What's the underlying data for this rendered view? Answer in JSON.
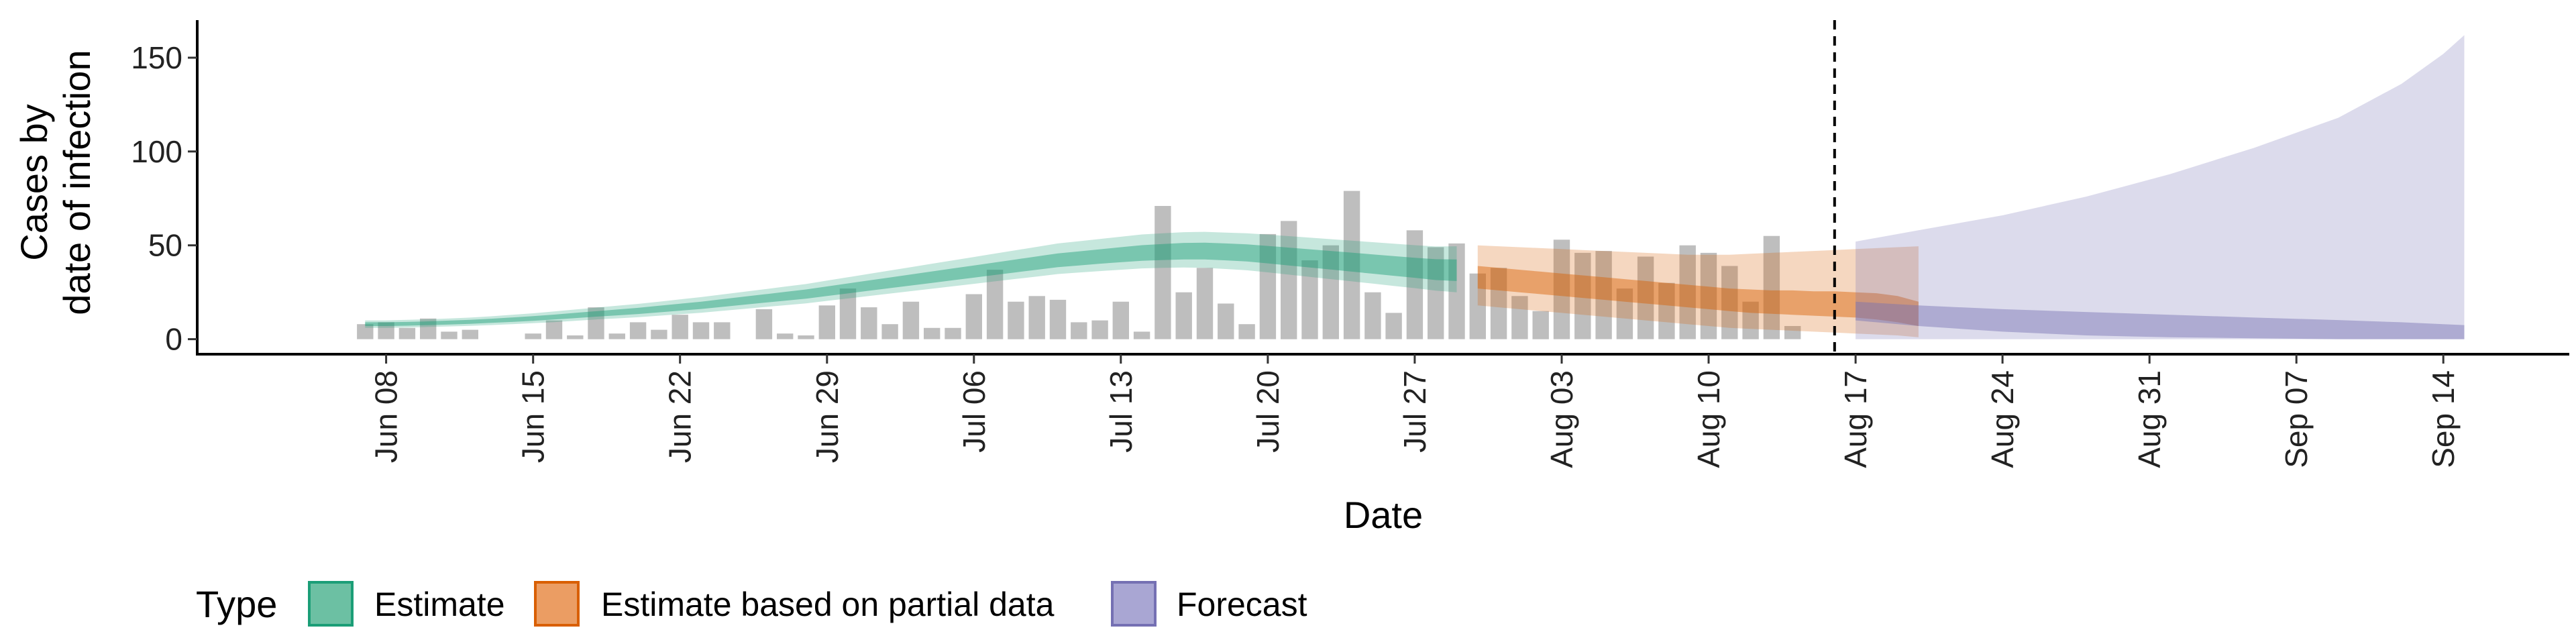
{
  "chart_data": {
    "type": "area",
    "xlabel": "Date",
    "ylabel_lines": [
      "Cases by",
      "date of infection"
    ],
    "x_ticks": [
      "Jun 08",
      "Jun 15",
      "Jun 22",
      "Jun 29",
      "Jul 06",
      "Jul 13",
      "Jul 20",
      "Jul 27",
      "Aug 03",
      "Aug 10",
      "Aug 17",
      "Aug 24",
      "Aug 31",
      "Sep 07",
      "Sep 14"
    ],
    "y_ticks": [
      0,
      50,
      100,
      150
    ],
    "ylim": [
      -8,
      170
    ],
    "xlim": [
      "2020-05-30",
      "2020-09-20"
    ],
    "forecast_start_line": "2020-08-16",
    "grid": false,
    "legend": {
      "title": "Type",
      "position": "bottom",
      "items": [
        {
          "label": "Estimate",
          "fill": "#6cc0a3",
          "stroke": "#1b9e77"
        },
        {
          "label": "Estimate based on partial data",
          "fill": "#eb9d63",
          "stroke": "#d95f02"
        },
        {
          "label": "Forecast",
          "fill": "#a9a6d3",
          "stroke": "#7570b3"
        }
      ]
    },
    "colors": {
      "bars": "#a8a8a8",
      "estimate": "#1b9e77",
      "partial": "#d95f02",
      "forecast": "#7570b3"
    },
    "reported_cases": {
      "start_date": "2020-06-07",
      "values": [
        8,
        9,
        6,
        11,
        4,
        5,
        0,
        0,
        3,
        10,
        2,
        17,
        3,
        9,
        5,
        13,
        9,
        9,
        0,
        16,
        3,
        2,
        18,
        27,
        17,
        8,
        20,
        6,
        6,
        24,
        37,
        20,
        23,
        21,
        9,
        10,
        20,
        4,
        71,
        25,
        38,
        19,
        8,
        56,
        63,
        42,
        50,
        79,
        25,
        14,
        58,
        49,
        51,
        35,
        38,
        23,
        15,
        53,
        46,
        47,
        27,
        44,
        30,
        50,
        46,
        39,
        20,
        55,
        7
      ]
    },
    "estimate": {
      "start_date": "2020-06-07",
      "median": [
        8,
        8,
        8.2,
        8.5,
        8.8,
        9.2,
        9.8,
        10.4,
        11,
        11.8,
        12.6,
        13.4,
        14.2,
        15,
        16,
        17,
        18,
        19.2,
        20.4,
        21.6,
        22.8,
        24,
        25.5,
        27,
        28.5,
        30,
        31.5,
        33,
        34.5,
        36,
        37.5,
        39,
        40.5,
        42,
        43,
        44,
        45,
        46,
        46.5,
        47,
        47,
        46.5,
        46,
        45,
        44,
        43,
        42,
        41,
        40,
        39,
        38,
        37,
        37
      ],
      "lower50": [
        7,
        7,
        7.2,
        7.5,
        7.8,
        8.2,
        8.7,
        9.2,
        9.8,
        10.5,
        11.2,
        12,
        12.7,
        13.4,
        14.3,
        15.2,
        16.1,
        17.2,
        18.3,
        19.4,
        20.5,
        21.6,
        23,
        24.4,
        25.8,
        27.2,
        28.6,
        30,
        31.4,
        32.8,
        34.2,
        35.6,
        37,
        38.4,
        39.3,
        40.2,
        41,
        41.8,
        42.2,
        42.5,
        42.5,
        42,
        41.4,
        40.4,
        39.3,
        38.2,
        37.1,
        36,
        34.9,
        33.8,
        32.7,
        31.5,
        31
      ],
      "upper50": [
        9,
        9,
        9.2,
        9.5,
        9.9,
        10.3,
        10.9,
        11.6,
        12.3,
        13.1,
        14,
        14.9,
        15.8,
        16.7,
        17.8,
        18.9,
        20,
        21.3,
        22.6,
        23.9,
        25.2,
        26.5,
        28.1,
        29.7,
        31.3,
        32.9,
        34.5,
        36.1,
        37.7,
        39.3,
        40.9,
        42.5,
        44.1,
        45.7,
        46.8,
        47.9,
        49,
        50.1,
        50.7,
        51.3,
        51.4,
        51,
        50.5,
        49.7,
        48.8,
        47.9,
        47,
        46.1,
        45.2,
        44.3,
        43.4,
        42.6,
        42.5
      ],
      "lower90": [
        6,
        6,
        6.2,
        6.5,
        6.8,
        7.1,
        7.5,
        8,
        8.5,
        9.1,
        9.8,
        10.5,
        11.1,
        11.7,
        12.5,
        13.3,
        14.1,
        15.1,
        16.1,
        17.1,
        18.1,
        19.1,
        20.4,
        21.7,
        23,
        24.3,
        25.6,
        26.9,
        28.2,
        29.5,
        30.8,
        32.1,
        33.4,
        34.7,
        35.5,
        36.3,
        37,
        37.7,
        38,
        38.2,
        38,
        37.4,
        36.7,
        35.6,
        34.4,
        33.2,
        32,
        30.8,
        29.6,
        28.4,
        27.2,
        25.9,
        25
      ],
      "upper90": [
        10,
        10,
        10.3,
        10.6,
        11,
        11.5,
        12.2,
        13,
        13.8,
        14.8,
        15.8,
        16.8,
        17.8,
        18.8,
        20,
        21.2,
        22.4,
        23.8,
        25.2,
        26.6,
        28,
        29.4,
        31.2,
        33,
        34.8,
        36.6,
        38.4,
        40.2,
        42,
        43.8,
        45.6,
        47.4,
        49.2,
        51,
        52.2,
        53.4,
        54.6,
        55.8,
        56.4,
        57,
        57.2,
        56.8,
        56.4,
        55.7,
        54.9,
        54.1,
        53.3,
        52.5,
        51.7,
        50.9,
        50.1,
        49.4,
        49.5
      ]
    },
    "partial": {
      "start_date": "2020-07-30",
      "median": [
        33,
        32,
        31,
        30,
        29,
        28,
        27,
        26,
        25,
        24,
        23,
        22,
        21,
        20,
        20,
        19.5,
        19,
        18.5,
        18,
        17,
        15,
        12
      ],
      "lower50": [
        27,
        26,
        25,
        24,
        23,
        22,
        21,
        20,
        19,
        18,
        17,
        16,
        15,
        14,
        13.5,
        13,
        12.5,
        12,
        11.5,
        10.5,
        9,
        7
      ],
      "upper50": [
        39,
        38,
        37,
        36,
        35,
        34,
        33,
        32,
        31,
        30,
        29,
        28,
        27,
        26.5,
        26,
        26,
        25.5,
        25.5,
        25,
        24.5,
        23,
        20
      ],
      "lower90": [
        18,
        17,
        16,
        15,
        14,
        13,
        12,
        11,
        10,
        9,
        8,
        7,
        6,
        5.5,
        5,
        4.5,
        4,
        3.5,
        3,
        2.5,
        2,
        1
      ],
      "upper90": [
        50,
        49.5,
        49,
        48.5,
        48,
        47.5,
        47,
        46.5,
        46,
        45.5,
        45,
        45,
        45,
        45.5,
        46,
        46.5,
        47,
        47.5,
        48,
        48.5,
        49,
        49.5
      ]
    },
    "forecast": {
      "dates": [
        "2020-08-17",
        "2020-08-20",
        "2020-08-24",
        "2020-08-28",
        "2020-09-01",
        "2020-09-05",
        "2020-09-09",
        "2020-09-12",
        "2020-09-14",
        "2020-09-15"
      ],
      "upper90": [
        52,
        58,
        66,
        76,
        88,
        102,
        118,
        136,
        152,
        162
      ],
      "upper50": [
        20,
        18,
        16,
        14.5,
        13,
        11.5,
        10.2,
        9,
        8,
        7.5
      ],
      "lower50": [
        10,
        7,
        4,
        2,
        1,
        0.5,
        0,
        0,
        0,
        0
      ],
      "lower90": [
        0,
        0,
        0,
        0,
        0,
        0,
        0,
        0,
        0,
        0
      ]
    }
  }
}
